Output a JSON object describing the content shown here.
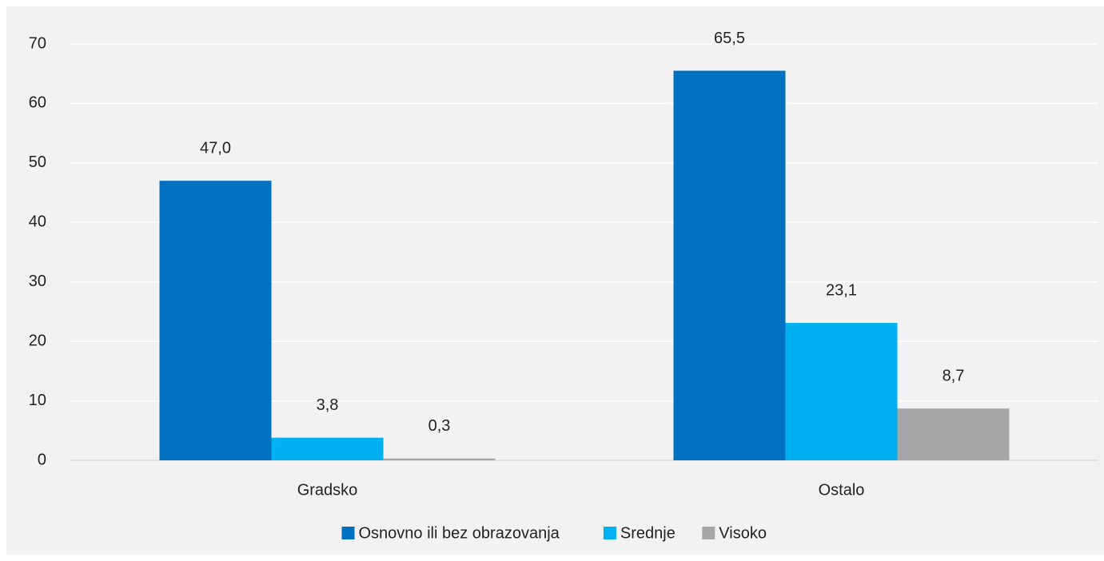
{
  "chart_data": {
    "type": "bar",
    "categories": [
      "Gradsko",
      "Ostalo"
    ],
    "series": [
      {
        "name": "Osnovno ili bez obrazovanja",
        "color": "#0070c0",
        "values": [
          47.0,
          65.5
        ],
        "value_labels": [
          "47,0",
          "65,5"
        ]
      },
      {
        "name": "Srednje",
        "color": "#00b0f0",
        "values": [
          3.8,
          23.1
        ],
        "value_labels": [
          "3,8",
          "23,1"
        ]
      },
      {
        "name": "Visoko",
        "color": "#a6a6a6",
        "values": [
          0.3,
          8.7
        ],
        "value_labels": [
          "0,3",
          "8,7"
        ]
      }
    ],
    "ylim": [
      0,
      70
    ],
    "yticks": [
      0,
      10,
      20,
      30,
      40,
      50,
      60,
      70
    ],
    "grid": true,
    "legend": "bottom"
  }
}
